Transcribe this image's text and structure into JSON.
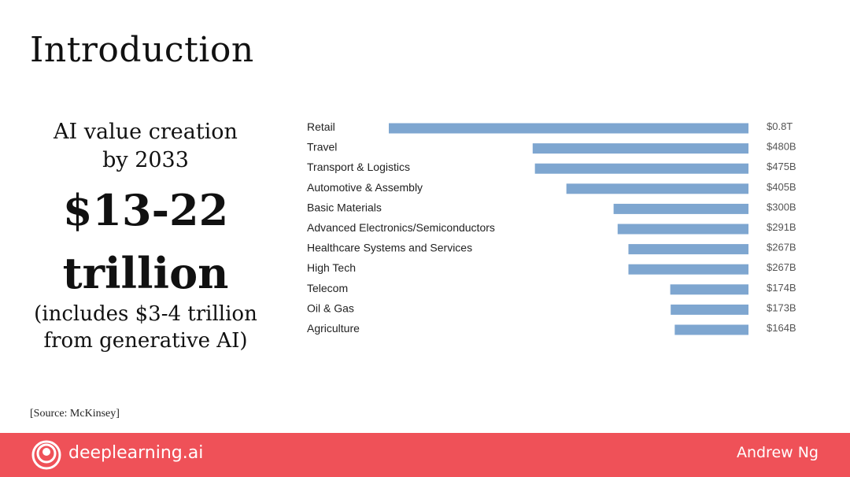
{
  "slide": {
    "title": "Introduction",
    "subtitle_line1": "AI value creation",
    "subtitle_line2": "by 2033",
    "big_line1": "$13-22",
    "big_line2": "trillion",
    "note_line1": "(includes $3-4 trillion",
    "note_line2": "from generative AI)",
    "source": "[Source: McKinsey]"
  },
  "footer": {
    "brand": "deeplearning.ai",
    "author": "Andrew Ng",
    "background_color": "#ef5158",
    "logo_icon": "deeplearning-logo-icon"
  },
  "chart_data": {
    "type": "bar",
    "orientation": "horizontal",
    "bar_color": "#7ea6d0",
    "categories": [
      "Retail",
      "Travel",
      "Transport & Logistics",
      "Automotive & Assembly",
      "Basic Materials",
      "Advanced Electronics/Semiconductors",
      "Healthcare Systems and Services",
      "High Tech",
      "Telecom",
      "Oil & Gas",
      "Agriculture"
    ],
    "values": [
      800,
      480,
      475,
      405,
      300,
      291,
      267,
      267,
      174,
      173,
      164
    ],
    "value_labels": [
      "$0.8T",
      "$480B",
      "$475B",
      "$405B",
      "$300B",
      "$291B",
      "$267B",
      "$267B",
      "$174B",
      "$173B",
      "$164B"
    ],
    "unit": "billions USD",
    "bars_aligned": "right",
    "grid": false
  }
}
